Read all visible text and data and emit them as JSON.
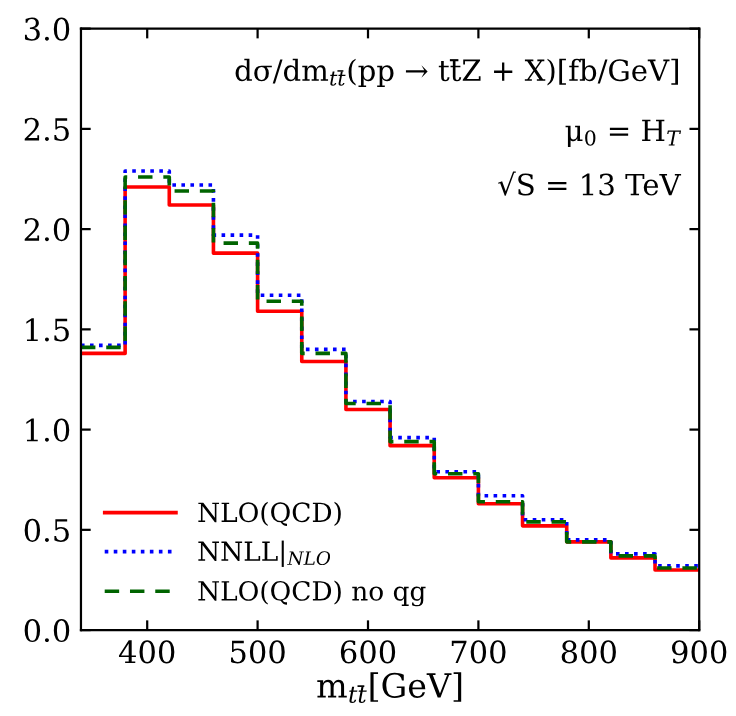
{
  "chart_data": {
    "type": "step",
    "xlabel": "m$_{tt̄}$[GeV]",
    "annotations": [
      "dσ/dm$_{tt̄}$(pp → tt̄Z + X)[fb/GeV]",
      "μ$_{0}$ = H$_{T}$",
      "√S = 13 TeV"
    ],
    "x": [
      340,
      380,
      420,
      460,
      500,
      540,
      580,
      620,
      660,
      700,
      740,
      780,
      820,
      860,
      900
    ],
    "series": [
      {
        "name": "NLO(QCD)",
        "color": "#ff0000",
        "line_style": "solid",
        "values": [
          1.38,
          2.21,
          2.12,
          1.88,
          1.59,
          1.34,
          1.1,
          0.92,
          0.76,
          0.63,
          0.52,
          0.44,
          0.36,
          0.3,
          0.3
        ]
      },
      {
        "name": "NNLL|$_{NLO}$",
        "color": "#0000ff",
        "line_style": "dotted",
        "values": [
          1.42,
          2.29,
          2.22,
          1.97,
          1.67,
          1.4,
          1.14,
          0.96,
          0.79,
          0.67,
          0.55,
          0.45,
          0.38,
          0.32,
          0.32
        ]
      },
      {
        "name": "NLO(QCD) no qg",
        "color": "#006400",
        "line_style": "dashed",
        "values": [
          1.41,
          2.26,
          2.19,
          1.93,
          1.64,
          1.38,
          1.13,
          0.94,
          0.78,
          0.64,
          0.54,
          0.44,
          0.37,
          0.31,
          0.31
        ]
      }
    ],
    "xlim": [
      340,
      900
    ],
    "ylim": [
      0,
      3.0
    ],
    "xticks": [
      400,
      500,
      600,
      700,
      800,
      900
    ],
    "yticks": [
      {
        "value": 0,
        "label": "0.0"
      },
      0.5,
      {
        "value": 1,
        "label": "1.0"
      },
      1.5,
      {
        "value": 2,
        "label": "2.0"
      },
      2.5,
      {
        "value": 3,
        "label": "3.0"
      }
    ],
    "legend": "bottom left",
    "grid": false
  }
}
